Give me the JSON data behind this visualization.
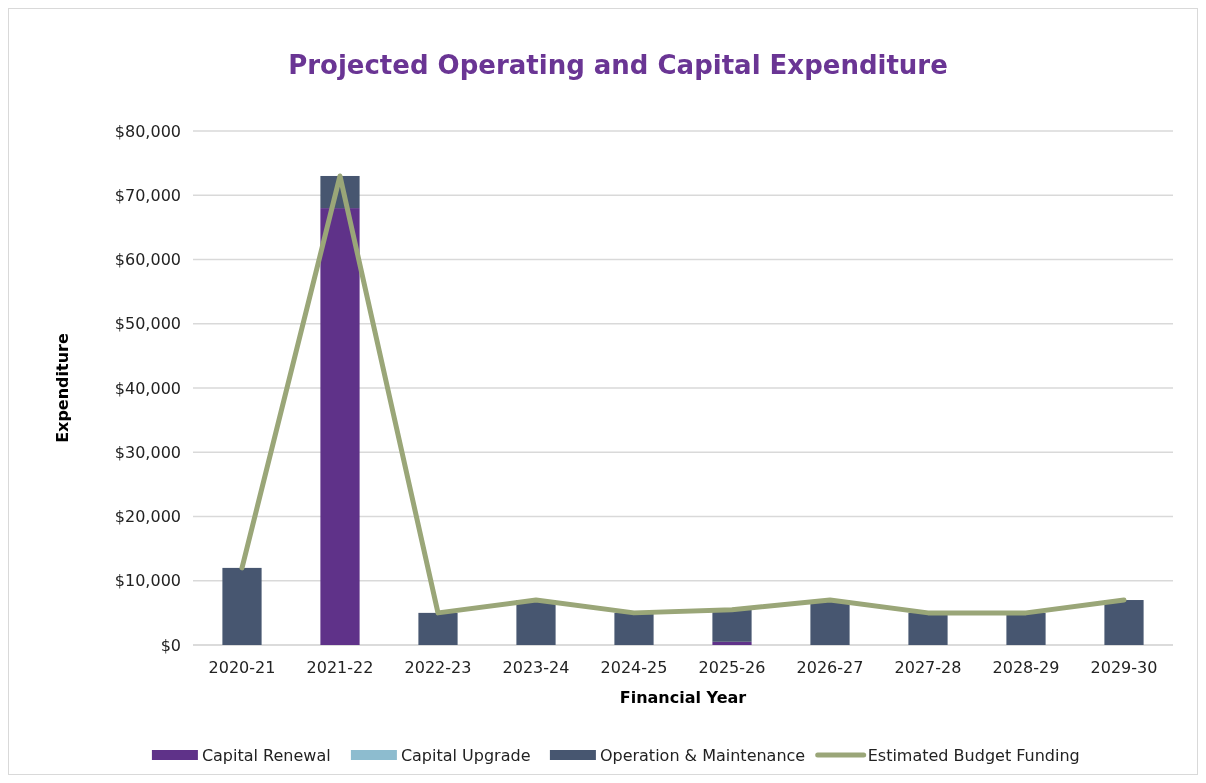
{
  "chart_data": {
    "type": "bar",
    "title": "Projected Operating and Capital Expenditure",
    "xlabel": "Financial Year",
    "ylabel": "Expenditure",
    "categories": [
      "2020-21",
      "2021-22",
      "2022-23",
      "2023-24",
      "2024-25",
      "2025-26",
      "2026-27",
      "2027-28",
      "2028-29",
      "2029-30"
    ],
    "stacked": true,
    "series": [
      {
        "name": "Capital Renewal",
        "color": "#5f3289",
        "values": [
          0,
          68000,
          0,
          0,
          0,
          500,
          0,
          0,
          0,
          0
        ]
      },
      {
        "name": "Capital Upgrade",
        "color": "#8dbccf",
        "values": [
          0,
          0,
          0,
          0,
          0,
          0,
          0,
          0,
          0,
          0
        ]
      },
      {
        "name": "Operation & Maintenance",
        "color": "#475670",
        "values": [
          12000,
          5000,
          5000,
          7000,
          5000,
          5000,
          7000,
          5000,
          5000,
          7000
        ]
      },
      {
        "name": "Estimated Budget Funding",
        "type": "line",
        "color": "#9aa678",
        "values": [
          12000,
          73000,
          5000,
          7000,
          5000,
          5500,
          7000,
          5000,
          5000,
          7000
        ]
      }
    ],
    "ylim": [
      0,
      80000
    ],
    "yticks": [
      {
        "value": 0,
        "label": "$0"
      },
      {
        "value": 10000,
        "label": "$10,000"
      },
      {
        "value": 20000,
        "label": "$20,000"
      },
      {
        "value": 30000,
        "label": "$30,000"
      },
      {
        "value": 40000,
        "label": "$40,000"
      },
      {
        "value": 50000,
        "label": "$50,000"
      },
      {
        "value": 60000,
        "label": "$60,000"
      },
      {
        "value": 70000,
        "label": "$70,000"
      },
      {
        "value": 80000,
        "label": "$80,000"
      }
    ],
    "grid": "y",
    "legend": "bottom",
    "marker": "none",
    "line_style": "solid"
  }
}
